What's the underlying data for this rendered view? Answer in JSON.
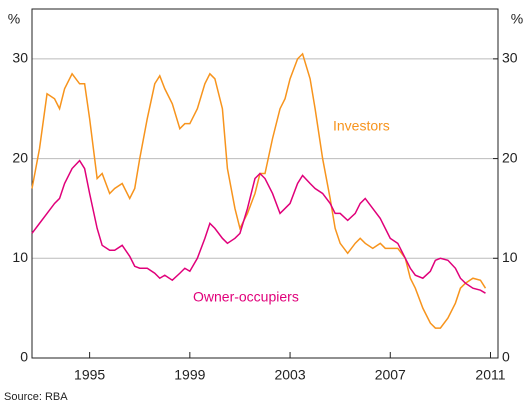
{
  "chart_data": {
    "type": "line",
    "y_label": "%",
    "y2_label": "%",
    "source": "Source: RBA",
    "annotations": [
      "Investors",
      "Owner-occupiers"
    ],
    "x": [
      1992.7,
      1993.0,
      1993.3,
      1993.6,
      1993.8,
      1994.0,
      1994.3,
      1994.6,
      1994.8,
      1995.0,
      1995.3,
      1995.5,
      1995.8,
      1996.0,
      1996.3,
      1996.6,
      1996.8,
      1997.0,
      1997.3,
      1997.6,
      1997.8,
      1998.0,
      1998.3,
      1998.6,
      1998.8,
      1999.0,
      1999.3,
      1999.6,
      1999.8,
      2000.0,
      2000.3,
      2000.5,
      2000.8,
      2001.0,
      2001.3,
      2001.6,
      2001.8,
      2002.0,
      2002.3,
      2002.6,
      2002.8,
      2003.0,
      2003.3,
      2003.5,
      2003.8,
      2004.0,
      2004.3,
      2004.6,
      2004.8,
      2005.0,
      2005.3,
      2005.6,
      2005.8,
      2006.0,
      2006.3,
      2006.6,
      2006.8,
      2007.0,
      2007.3,
      2007.6,
      2007.8,
      2008.0,
      2008.3,
      2008.6,
      2008.8,
      2009.0,
      2009.3,
      2009.6,
      2009.8,
      2010.0,
      2010.3,
      2010.6,
      2010.8
    ],
    "series": [
      {
        "color": "#f7941d",
        "values": [
          17,
          21,
          26.5,
          26,
          25,
          27,
          28.5,
          27.5,
          27.5,
          24,
          18,
          18.5,
          16.5,
          17,
          17.5,
          16,
          17,
          20,
          24,
          27.5,
          28.3,
          27,
          25.5,
          23,
          23.5,
          23.5,
          25,
          27.5,
          28.5,
          28,
          25,
          19,
          15,
          13,
          14.5,
          16.5,
          18.5,
          18.5,
          22,
          25,
          26,
          28,
          30,
          30.5,
          28,
          25,
          20,
          16,
          13,
          11.5,
          10.5,
          11.5,
          12,
          11.5,
          11,
          11.5,
          11,
          11,
          11,
          10,
          8,
          7,
          5,
          3.5,
          3,
          3,
          4,
          5.5,
          7,
          7.5,
          8,
          7.8,
          7
        ]
      },
      {
        "color": "#e0007a",
        "values": [
          12.5,
          13.5,
          14.5,
          15.5,
          16,
          17.5,
          19,
          19.8,
          19,
          16.5,
          13,
          11.3,
          10.8,
          10.8,
          11.3,
          10.2,
          9.2,
          9,
          9,
          8.5,
          8,
          8.3,
          7.8,
          8.5,
          9,
          8.7,
          10,
          12,
          13.5,
          13,
          12,
          11.5,
          12,
          12.5,
          15,
          18,
          18.5,
          18,
          16.5,
          14.5,
          15,
          15.5,
          17.5,
          18.3,
          17.5,
          17,
          16.5,
          15.5,
          14.5,
          14.5,
          13.8,
          14.5,
          15.5,
          16,
          15,
          14,
          13,
          12,
          11.5,
          10,
          9,
          8.3,
          8,
          8.7,
          9.8,
          10,
          9.8,
          9,
          8,
          7.5,
          7,
          6.8,
          6.5
        ]
      }
    ],
    "xlim": [
      1992.7,
      2011.3
    ],
    "xticks": [
      1995,
      1999,
      2003,
      2007,
      2011
    ],
    "ylim": [
      0,
      35
    ],
    "yticks": [
      0,
      10,
      20,
      30
    ],
    "y2lim": [
      0,
      35
    ],
    "y2ticks": [
      0,
      10,
      20,
      30
    ],
    "grid": true
  }
}
